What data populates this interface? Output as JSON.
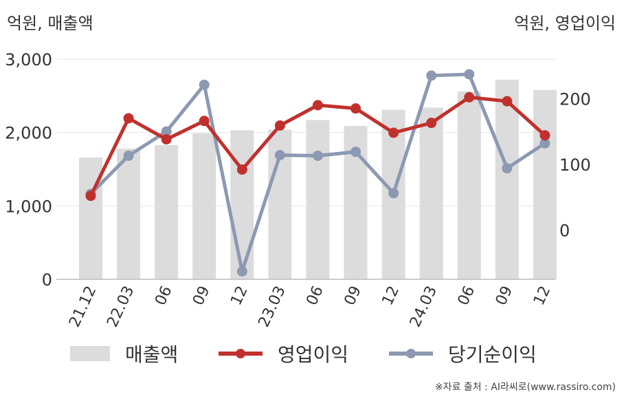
{
  "units": {
    "left": "억원, 매출액",
    "right": "억원, 영업이익"
  },
  "legend": [
    {
      "label": "매출액",
      "kind": "bar"
    },
    {
      "label": "영업이익",
      "kind": "line"
    },
    {
      "label": "당기순이익",
      "kind": "line"
    }
  ],
  "source": "※자료 출처 : AI라씨로(www.rassiro.com)",
  "colors": {
    "bar": "#dcdcdc",
    "operating": "#c0312e",
    "net": "#8d99b2",
    "axis": "#bbbbbb",
    "grid": "#e6e6e6"
  },
  "chart_data": {
    "type": "bar+line",
    "categories": [
      "21.12",
      "22.03",
      "06",
      "09",
      "12",
      "23.03",
      "06",
      "09",
      "12",
      "24.03",
      "06",
      "09",
      "12"
    ],
    "left_axis": {
      "ticks": [
        "0",
        "1,000",
        "2,000",
        "3,000"
      ],
      "tick_values": [
        0,
        1000,
        2000,
        3000
      ],
      "range": [
        0,
        3000
      ]
    },
    "right_axis": {
      "ticks": [
        "0",
        "100",
        "200"
      ],
      "tick_values": [
        0,
        100,
        200
      ],
      "range": [
        -75,
        260
      ]
    },
    "grid": true,
    "legend_position": "bottom",
    "series": [
      {
        "name": "매출액",
        "axis": "left",
        "type": "bar",
        "values": [
          1660,
          1780,
          1830,
          1990,
          2030,
          2040,
          2170,
          2090,
          2310,
          2340,
          2560,
          2720,
          2580
        ]
      },
      {
        "name": "영업이익",
        "axis": "right",
        "type": "line",
        "values": [
          52,
          170,
          138,
          166,
          92,
          159,
          190,
          185,
          148,
          163,
          202,
          196,
          144
        ]
      },
      {
        "name": "당기순이익",
        "axis": "right",
        "type": "line",
        "values": [
          55,
          113,
          150,
          221,
          -63,
          114,
          113,
          119,
          56,
          235,
          237,
          94,
          132
        ]
      }
    ]
  }
}
